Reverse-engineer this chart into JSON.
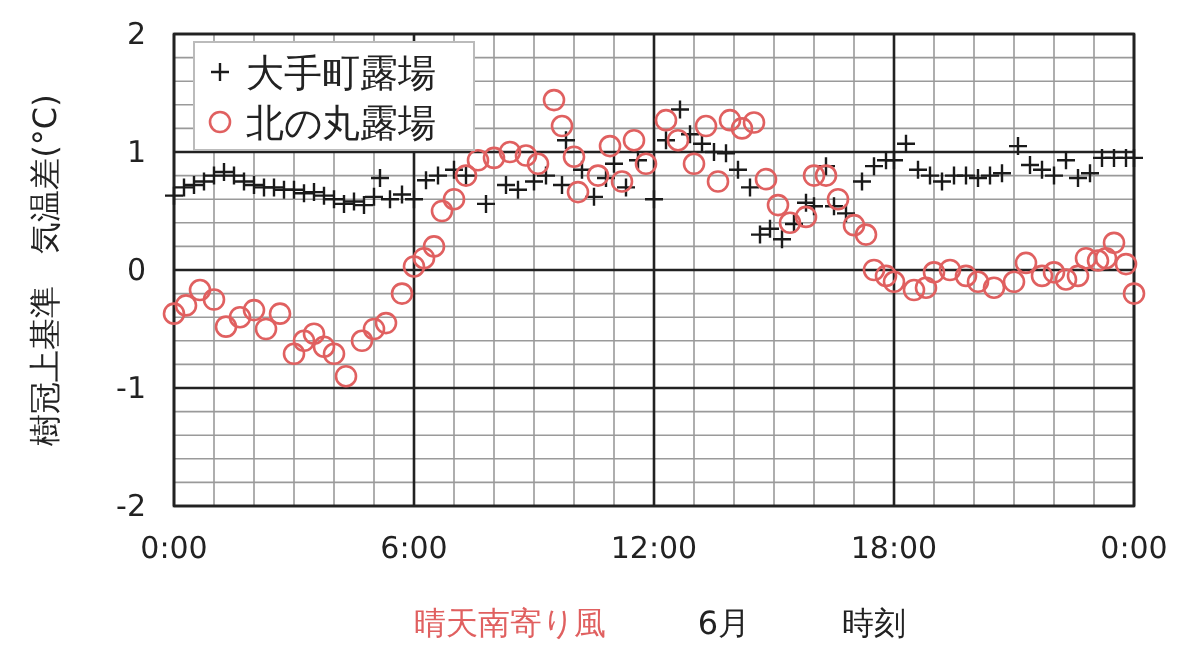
{
  "chart_data": {
    "type": "scatter",
    "xlabel": "時刻",
    "ylabel": "樹冠上基準　気温差(°C)",
    "annotations": [
      "晴天南寄り風",
      "6月"
    ],
    "xlim": [
      0,
      24
    ],
    "ylim": [
      -2,
      2
    ],
    "xticks": [
      {
        "value": 0,
        "label": "0:00"
      },
      {
        "value": 6,
        "label": "6:00"
      },
      {
        "value": 12,
        "label": "12:00"
      },
      {
        "value": 18,
        "label": "18:00"
      },
      {
        "value": 24,
        "label": "0:00"
      }
    ],
    "yticks": [
      -2,
      -1,
      0,
      1,
      2
    ],
    "grid": true,
    "legend": "top left",
    "series": [
      {
        "name": "大手町露場",
        "color": "#1a1a1a",
        "marker": "cross",
        "x": [
          0,
          0.25,
          0.5,
          0.75,
          1,
          1.25,
          1.5,
          1.75,
          2,
          2.25,
          2.5,
          2.75,
          3,
          3.25,
          3.5,
          3.75,
          4,
          4.25,
          4.5,
          4.75,
          5,
          5.15,
          5.4,
          5.7,
          6,
          6.3,
          6.6,
          7,
          7.3,
          7.8,
          8.3,
          8.6,
          9,
          9.3,
          9.7,
          9.8,
          10.2,
          10.5,
          10.8,
          11,
          11.3,
          11.6,
          12,
          12.3,
          12.65,
          12.9,
          13.2,
          13.5,
          13.8,
          14.1,
          14.4,
          14.65,
          14.9,
          15.2,
          15.5,
          15.8,
          16,
          16.3,
          16.5,
          16.8,
          17.2,
          17.5,
          17.8,
          18,
          18.3,
          18.6,
          18.9,
          19.2,
          19.5,
          19.8,
          20.1,
          20.4,
          20.7,
          21.1,
          21.4,
          21.7,
          22,
          22.3,
          22.6,
          22.9,
          23.2,
          23.5,
          23.8,
          24
        ],
        "values": [
          0.63,
          0.7,
          0.72,
          0.75,
          0.8,
          0.83,
          0.8,
          0.75,
          0.72,
          0.7,
          0.7,
          0.68,
          0.68,
          0.65,
          0.66,
          0.63,
          0.6,
          0.56,
          0.58,
          0.55,
          0.62,
          0.78,
          0.6,
          0.64,
          0.6,
          0.76,
          0.8,
          0.85,
          0.8,
          0.56,
          0.72,
          0.68,
          0.75,
          0.8,
          0.72,
          1.1,
          0.85,
          0.62,
          0.78,
          0.9,
          0.7,
          0.93,
          0.6,
          1.1,
          1.36,
          1.15,
          1.07,
          1.0,
          0.99,
          0.85,
          0.7,
          0.3,
          0.35,
          0.26,
          0.39,
          0.57,
          0.54,
          0.88,
          0.54,
          0.48,
          0.75,
          0.88,
          0.93,
          0.93,
          1.07,
          0.85,
          0.8,
          0.75,
          0.8,
          0.8,
          0.78,
          0.8,
          0.82,
          1.05,
          0.89,
          0.85,
          0.8,
          0.93,
          0.78,
          0.82,
          0.95,
          0.95,
          0.95,
          0.95
        ]
      },
      {
        "name": "北の丸露場",
        "color": "#e06060",
        "marker": "circle",
        "x": [
          0,
          0.3,
          0.65,
          1,
          1.3,
          1.65,
          2,
          2.3,
          2.65,
          3,
          3.25,
          3.5,
          3.75,
          4,
          4.3,
          4.7,
          5,
          5.3,
          5.7,
          6,
          6.25,
          6.5,
          6.7,
          7,
          7.3,
          7.6,
          8,
          8.4,
          8.8,
          9.1,
          9.5,
          9.7,
          10,
          10.1,
          10.6,
          10.9,
          11.2,
          11.5,
          11.8,
          12.3,
          12.6,
          13,
          13.3,
          13.6,
          13.9,
          14.2,
          14.5,
          14.8,
          15.1,
          15.4,
          15.8,
          16,
          16.3,
          16.6,
          17,
          17.3,
          17.5,
          17.8,
          18,
          18.5,
          18.8,
          19,
          19.4,
          19.8,
          20.1,
          20.5,
          21,
          21.3,
          21.7,
          22,
          22.3,
          22.6,
          22.8,
          23.1,
          23.3,
          23.5,
          23.8,
          24
        ],
        "values": [
          -0.37,
          -0.3,
          -0.17,
          -0.25,
          -0.48,
          -0.4,
          -0.34,
          -0.5,
          -0.37,
          -0.71,
          -0.6,
          -0.54,
          -0.65,
          -0.71,
          -0.9,
          -0.6,
          -0.5,
          -0.45,
          -0.2,
          0.03,
          0.1,
          0.2,
          0.5,
          0.6,
          0.8,
          0.93,
          0.95,
          1.0,
          0.97,
          0.9,
          1.44,
          1.22,
          0.96,
          0.66,
          0.8,
          1.05,
          0.75,
          1.1,
          0.9,
          1.27,
          1.1,
          0.9,
          1.22,
          0.75,
          1.27,
          1.2,
          1.25,
          0.77,
          0.55,
          0.4,
          0.45,
          0.8,
          0.8,
          0.6,
          0.38,
          0.3,
          0.0,
          -0.05,
          -0.1,
          -0.17,
          -0.15,
          -0.02,
          0.0,
          -0.05,
          -0.1,
          -0.15,
          -0.1,
          0.06,
          -0.05,
          -0.02,
          -0.08,
          -0.05,
          0.1,
          0.08,
          0.1,
          0.23,
          0.05,
          -0.2
        ]
      }
    ]
  }
}
